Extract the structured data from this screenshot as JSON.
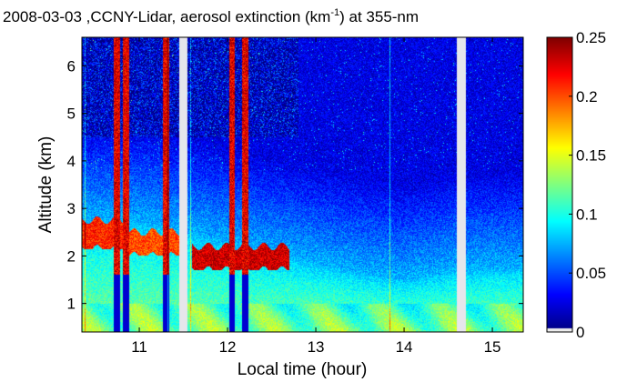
{
  "chart_data": {
    "type": "heatmap",
    "title_parts": {
      "prefix": "2008-03-03 ,CCNY-Lidar, aerosol extinction (km",
      "superscript": "-1",
      "suffix": ") at 355-nm"
    },
    "xlabel": "Local time (hour)",
    "ylabel": "Altitude (km)",
    "xlim": [
      10.35,
      15.35
    ],
    "ylim": [
      0.4,
      6.6
    ],
    "xticks": [
      11,
      12,
      13,
      14,
      15
    ],
    "xtick_labels": [
      "11",
      "12",
      "13",
      "14",
      "15"
    ],
    "yticks": [
      1,
      2,
      3,
      4,
      5,
      6
    ],
    "ytick_labels": [
      "1",
      "2",
      "3",
      "4",
      "5",
      "6"
    ],
    "colorbar": {
      "colormap": "jet",
      "range": [
        0,
        0.25
      ],
      "ticks": [
        0,
        0.05,
        0.1,
        0.15,
        0.2,
        0.25
      ],
      "tick_labels": [
        "0",
        "0.05",
        "0.1",
        "0.15",
        "0.2",
        "0.25"
      ]
    },
    "data_gaps_hours": [
      [
        11.45,
        11.55
      ],
      [
        14.6,
        14.7
      ]
    ],
    "aerosol_layer_top_km": [
      [
        10.35,
        2.75
      ],
      [
        11.0,
        2.7
      ],
      [
        11.5,
        2.5
      ],
      [
        12.0,
        2.25
      ],
      [
        12.5,
        2.05
      ],
      [
        13.0,
        1.85
      ],
      [
        13.5,
        1.65
      ],
      [
        14.0,
        1.5
      ],
      [
        14.6,
        1.7
      ],
      [
        15.35,
        1.75
      ]
    ],
    "enhanced_layer_segments": [
      {
        "x": [
          10.35,
          10.85
        ],
        "alt_km": [
          2.15,
          2.85
        ],
        "value": 0.23
      },
      {
        "x": [
          10.85,
          11.5
        ],
        "alt_km": [
          2.0,
          2.6
        ],
        "value": 0.22
      },
      {
        "x": [
          11.6,
          12.7
        ],
        "alt_km": [
          1.7,
          2.3
        ],
        "value": 0.25
      }
    ],
    "cloud_columns": [
      {
        "x": 10.75,
        "alt_km": [
          0.4,
          6.6
        ]
      },
      {
        "x": 10.85,
        "alt_km": [
          0.4,
          6.6
        ]
      },
      {
        "x": 11.3,
        "alt_km": [
          0.4,
          6.6
        ]
      },
      {
        "x": 12.05,
        "alt_km": [
          0.4,
          6.6
        ]
      },
      {
        "x": 12.2,
        "alt_km": [
          0.4,
          6.6
        ]
      }
    ]
  }
}
